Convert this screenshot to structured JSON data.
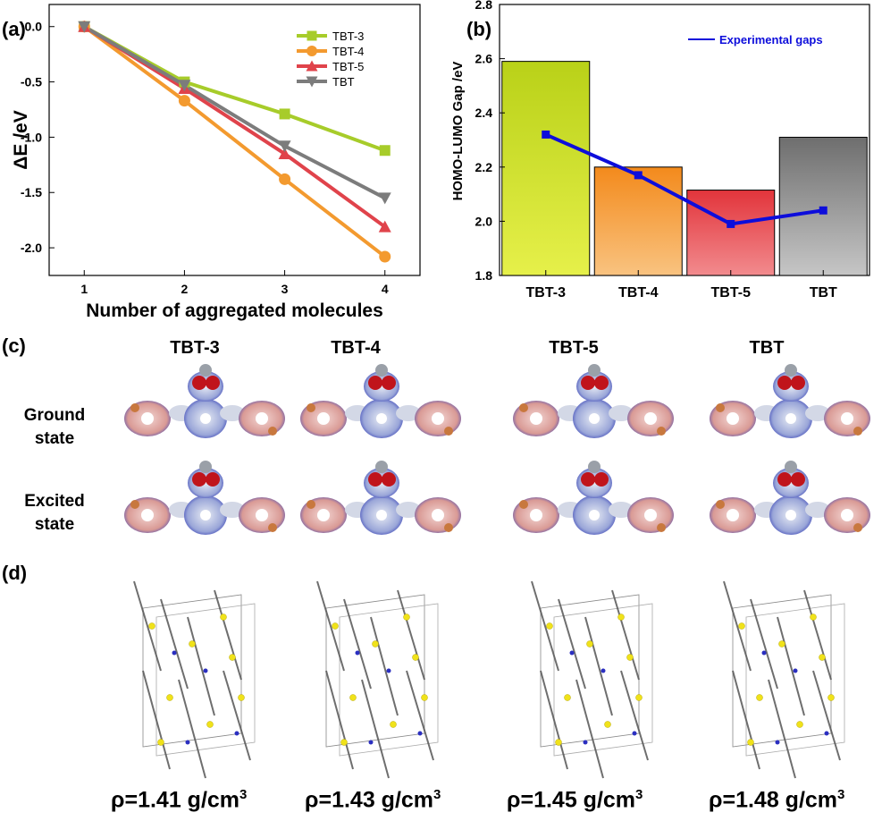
{
  "panels": {
    "a": "(a)",
    "b": "(b)",
    "c": "(c)",
    "d": "(d)"
  },
  "colors": {
    "TBT-3": "#a7cc2a",
    "TBT-4": "#f39a2f",
    "TBT-5": "#e0434b",
    "TBT": "#7c7c7c",
    "experimental": "#0d0ddb"
  },
  "chart_data": [
    {
      "type": "line",
      "panel": "(a)",
      "x": [
        1,
        2,
        3,
        4
      ],
      "xticks": [
        "1",
        "2",
        "3",
        "4"
      ],
      "xlabel": "Number of aggregated molecules",
      "ylabel": "ΔE /eV",
      "ylim": [
        -2.25,
        0.2
      ],
      "yticks": [
        "0.0",
        "-0.5",
        "-1.0",
        "-1.5",
        "-2.0"
      ],
      "legend_position": "top-right",
      "series": [
        {
          "name": "TBT-3",
          "marker": "square",
          "values": [
            0.0,
            -0.5,
            -0.79,
            -1.12
          ]
        },
        {
          "name": "TBT-4",
          "marker": "circle",
          "values": [
            0.0,
            -0.67,
            -1.38,
            -2.08
          ]
        },
        {
          "name": "TBT-5",
          "marker": "triangle-up",
          "values": [
            0.0,
            -0.56,
            -1.15,
            -1.81
          ]
        },
        {
          "name": "TBT",
          "marker": "triangle-down",
          "values": [
            0.0,
            -0.53,
            -1.08,
            -1.55
          ]
        }
      ]
    },
    {
      "type": "bar",
      "panel": "(b)",
      "categories": [
        "TBT-3",
        "TBT-4",
        "TBT-5",
        "TBT"
      ],
      "ylabel": "HOMO-LUMO Gap /eV",
      "ylim": [
        1.8,
        2.8
      ],
      "yticks": [
        "1.8",
        "2.0",
        "2.2",
        "2.4",
        "2.6",
        "2.8"
      ],
      "series": [
        {
          "values": [
            2.59,
            2.2,
            2.115,
            2.31
          ]
        },
        {
          "name": "Experimental gaps",
          "type": "line",
          "values": [
            2.32,
            2.17,
            1.99,
            2.04
          ]
        }
      ],
      "legend_position": "top-right"
    }
  ],
  "section_c": {
    "columns": [
      "TBT-3",
      "TBT-4",
      "TBT-5",
      "TBT"
    ],
    "rows": [
      {
        "label_line1": "Ground",
        "label_line2": "state"
      },
      {
        "label_line1": "Excited",
        "label_line2": "state"
      }
    ]
  },
  "section_d": {
    "densities": [
      {
        "text": "ρ=1.41 g/cm",
        "sup": "3"
      },
      {
        "text": "ρ=1.43 g/cm",
        "sup": "3"
      },
      {
        "text": "ρ=1.45 g/cm",
        "sup": "3"
      },
      {
        "text": "ρ=1.48 g/cm",
        "sup": "3"
      }
    ]
  }
}
